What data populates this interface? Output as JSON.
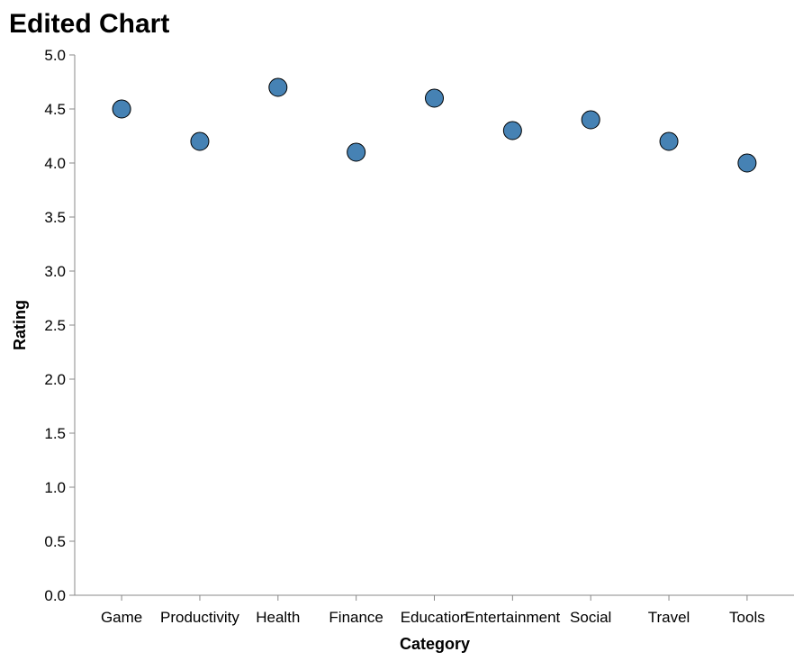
{
  "chart_data": {
    "type": "scatter",
    "title": "Edited Chart",
    "xlabel": "Category",
    "ylabel": "Rating",
    "categories": [
      "Game",
      "Productivity",
      "Health",
      "Finance",
      "Education",
      "Entertainment",
      "Social",
      "Travel",
      "Tools"
    ],
    "values": [
      4.5,
      4.2,
      4.7,
      4.1,
      4.6,
      4.3,
      4.4,
      4.2,
      4.0
    ],
    "ylim": [
      0,
      5
    ],
    "yticks": [
      "0.0",
      "0.5",
      "1.0",
      "1.5",
      "2.0",
      "2.5",
      "3.0",
      "3.5",
      "4.0",
      "4.5",
      "5.0"
    ],
    "grid": false,
    "point_color": "#4682b4"
  }
}
